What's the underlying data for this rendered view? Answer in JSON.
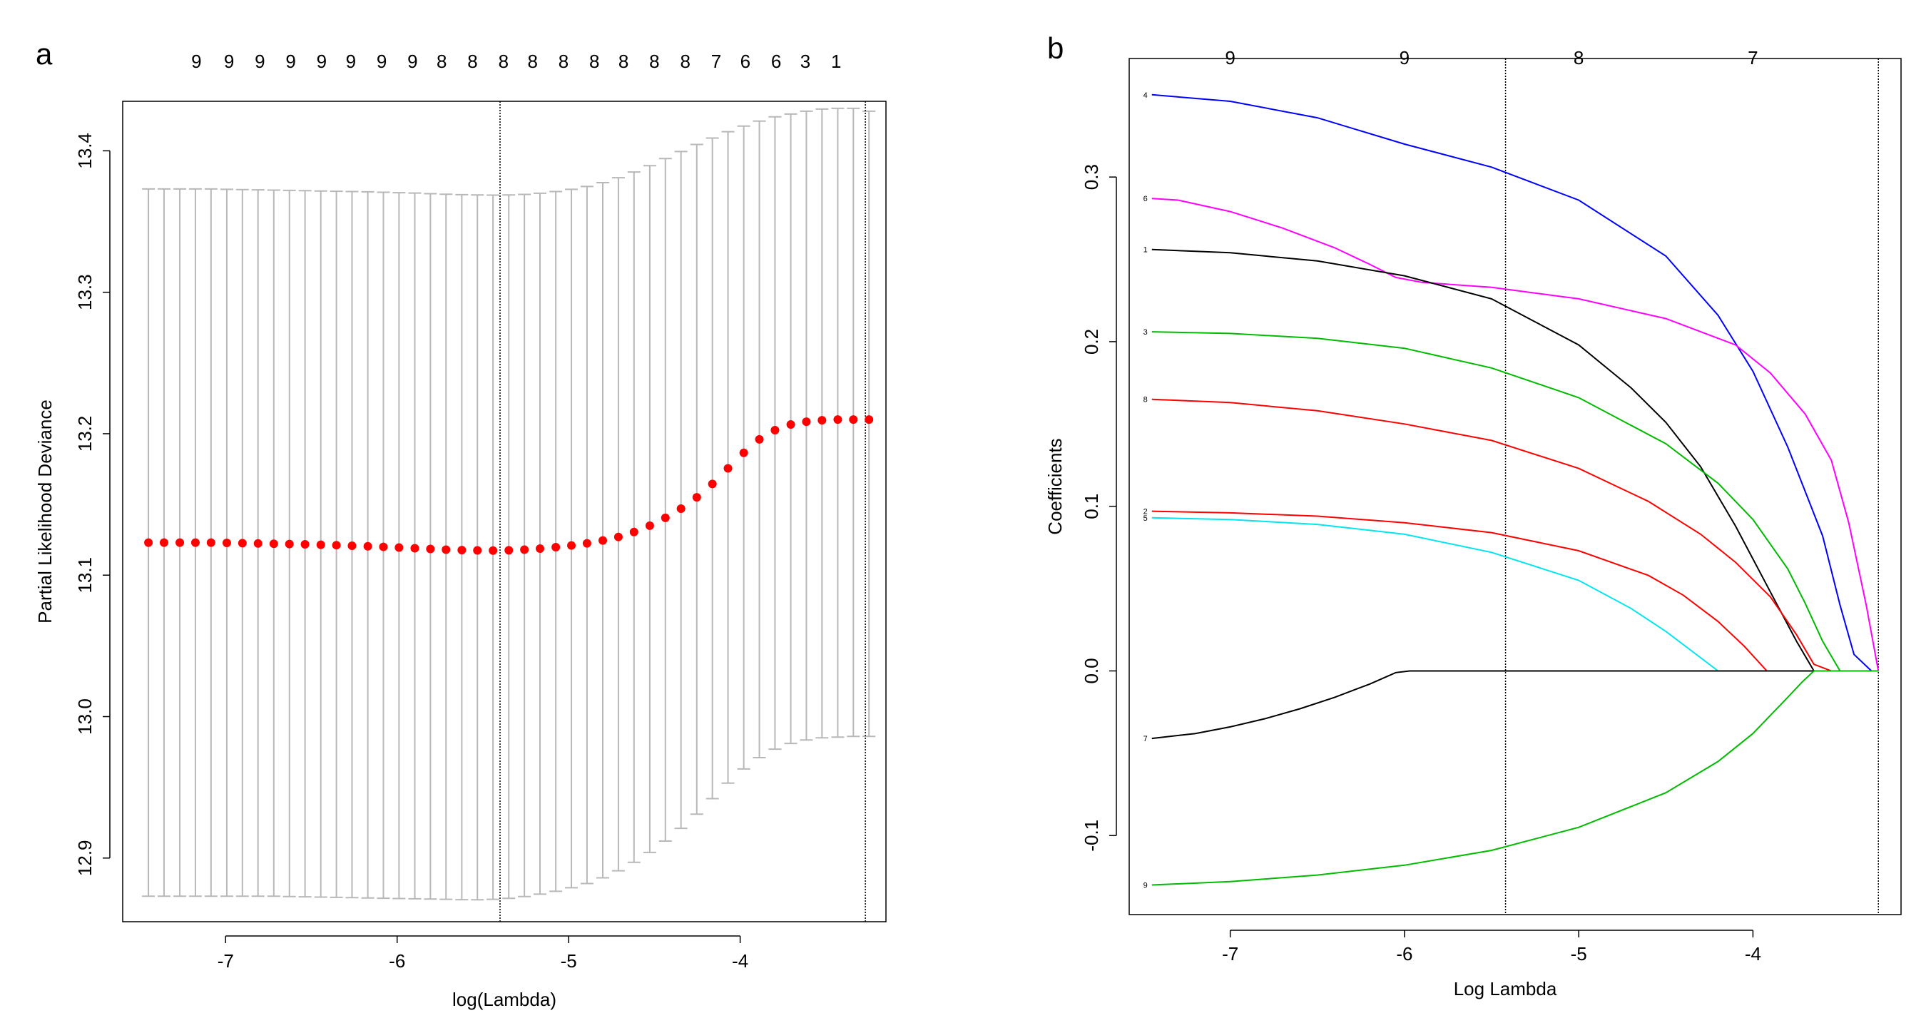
{
  "chart_data": [
    {
      "panel": "a",
      "type": "scatter",
      "title": "",
      "xlabel": "log(Lambda)",
      "ylabel": "Partial Likelihood Deviance",
      "xlim": [
        -7.6,
        -3.15
      ],
      "ylim": [
        12.855,
        13.435
      ],
      "xticks": [
        -7,
        -6,
        -5,
        -4
      ],
      "yticks": [
        12.9,
        13.0,
        13.1,
        13.2,
        13.3,
        13.4
      ],
      "top_counts": [
        "9",
        "9",
        "9",
        "9",
        "9",
        "9",
        "9",
        "9",
        "8",
        "8",
        "8",
        "8",
        "8",
        "8",
        "8",
        "8",
        "8",
        "7",
        "6",
        "6",
        "3",
        "1"
      ],
      "top_counts_x": [
        -7.17,
        -6.98,
        -6.8,
        -6.62,
        -6.44,
        -6.27,
        -6.09,
        -5.91,
        -5.74,
        -5.56,
        -5.38,
        -5.21,
        -5.03,
        -4.85,
        -4.68,
        -4.5,
        -4.32,
        -4.14,
        -3.97,
        -3.79,
        -3.62,
        -3.44
      ],
      "vlines": [
        -5.4,
        -3.27
      ],
      "series": [
        {
          "name": "cv-deviance",
          "color": "#ff0000",
          "x": [
            -7.45,
            -7.359,
            -7.267,
            -7.176,
            -7.085,
            -6.993,
            -6.902,
            -6.811,
            -6.719,
            -6.628,
            -6.537,
            -6.445,
            -6.354,
            -6.263,
            -6.171,
            -6.08,
            -5.989,
            -5.897,
            -5.806,
            -5.715,
            -5.623,
            -5.532,
            -5.441,
            -5.349,
            -5.258,
            -5.167,
            -5.075,
            -4.984,
            -4.893,
            -4.801,
            -4.71,
            -4.619,
            -4.527,
            -4.436,
            -4.345,
            -4.253,
            -4.162,
            -4.071,
            -3.979,
            -3.888,
            -3.797,
            -3.705,
            -3.614,
            -3.523,
            -3.431,
            -3.34,
            -3.249
          ],
          "y": [
            13.123,
            13.123,
            13.123,
            13.123,
            13.123,
            13.1228,
            13.1226,
            13.1224,
            13.1222,
            13.122,
            13.1218,
            13.1215,
            13.1212,
            13.1208,
            13.1204,
            13.12,
            13.1195,
            13.119,
            13.1185,
            13.118,
            13.1177,
            13.1175,
            13.1174,
            13.1176,
            13.118,
            13.1188,
            13.1198,
            13.121,
            13.1225,
            13.1245,
            13.127,
            13.1305,
            13.135,
            13.1405,
            13.147,
            13.155,
            13.1645,
            13.1755,
            13.1865,
            13.196,
            13.2025,
            13.2065,
            13.2085,
            13.2095,
            13.21,
            13.21,
            13.21
          ],
          "lower": [
            12.873,
            12.873,
            12.873,
            12.873,
            12.873,
            12.873,
            12.873,
            12.873,
            12.873,
            12.8728,
            12.8726,
            12.8724,
            12.8722,
            12.872,
            12.8718,
            12.8716,
            12.8714,
            12.8712,
            12.871,
            12.8708,
            12.8706,
            12.8705,
            12.8708,
            12.8715,
            12.8728,
            12.8745,
            12.8765,
            12.879,
            12.882,
            12.886,
            12.891,
            12.897,
            12.904,
            12.912,
            12.921,
            12.931,
            12.942,
            12.953,
            12.963,
            12.971,
            12.977,
            12.981,
            12.9835,
            12.985,
            12.9855,
            12.986,
            12.986
          ],
          "upper": [
            13.373,
            13.373,
            13.373,
            13.373,
            13.373,
            13.3728,
            13.3726,
            13.3724,
            13.3722,
            13.372,
            13.3718,
            13.3716,
            13.3714,
            13.3712,
            13.371,
            13.3707,
            13.3704,
            13.3701,
            13.3697,
            13.3693,
            13.369,
            13.3688,
            13.3687,
            13.3688,
            13.3692,
            13.37,
            13.3712,
            13.3728,
            13.3748,
            13.3775,
            13.381,
            13.385,
            13.3895,
            13.3945,
            13.3995,
            13.4045,
            13.409,
            13.4135,
            13.4175,
            13.421,
            13.424,
            13.426,
            13.428,
            13.4295,
            13.43,
            13.43,
            13.428
          ]
        }
      ]
    },
    {
      "panel": "b",
      "type": "line",
      "title": "",
      "xlabel": "Log Lambda",
      "ylabel": "Coefficients",
      "xlim": [
        -7.58,
        -3.15
      ],
      "ylim": [
        -0.148,
        0.372
      ],
      "xticks": [
        -7,
        -6,
        -5,
        -4
      ],
      "yticks": [
        -0.1,
        0.0,
        0.1,
        0.2,
        0.3
      ],
      "ytick_labels": [
        "-0.1",
        "0.0",
        "0.1",
        "0.2",
        "0.3"
      ],
      "top_counts": [
        "9",
        "9",
        "8",
        "7"
      ],
      "top_counts_x": [
        -7,
        -6,
        -5,
        -4
      ],
      "vlines": [
        -5.42,
        -3.28
      ],
      "series": [
        {
          "name": "4",
          "color": "#0000ff",
          "x": [
            -7.45,
            -7.0,
            -6.5,
            -6.0,
            -5.5,
            -5.0,
            -4.5,
            -4.2,
            -4.0,
            -3.8,
            -3.6,
            -3.5,
            -3.42,
            -3.32,
            -3.28
          ],
          "y": [
            0.35,
            0.346,
            0.336,
            0.32,
            0.306,
            0.286,
            0.252,
            0.216,
            0.182,
            0.136,
            0.082,
            0.04,
            0.01,
            0.0,
            0.0
          ]
        },
        {
          "name": "6",
          "color": "#ff00ff",
          "x": [
            -7.45,
            -7.3,
            -7.0,
            -6.7,
            -6.4,
            -6.2,
            -6.05,
            -5.9,
            -5.5,
            -5.0,
            -4.5,
            -4.1,
            -3.9,
            -3.7,
            -3.55,
            -3.45,
            -3.35,
            -3.28
          ],
          "y": [
            0.287,
            0.286,
            0.279,
            0.269,
            0.257,
            0.247,
            0.239,
            0.236,
            0.233,
            0.226,
            0.214,
            0.198,
            0.181,
            0.156,
            0.128,
            0.09,
            0.04,
            0.0
          ]
        },
        {
          "name": "1",
          "color": "#000000",
          "x": [
            -7.45,
            -7.0,
            -6.5,
            -6.0,
            -5.5,
            -5.0,
            -4.7,
            -4.5,
            -4.3,
            -4.1,
            -3.9,
            -3.75,
            -3.65,
            -3.28
          ],
          "y": [
            0.256,
            0.254,
            0.249,
            0.24,
            0.226,
            0.198,
            0.172,
            0.151,
            0.124,
            0.088,
            0.048,
            0.018,
            0.0,
            0.0
          ]
        },
        {
          "name": "3",
          "color": "#00bb00",
          "x": [
            -7.45,
            -7.0,
            -6.5,
            -6.0,
            -5.5,
            -5.0,
            -4.5,
            -4.2,
            -4.0,
            -3.8,
            -3.7,
            -3.6,
            -3.5,
            -3.28
          ],
          "y": [
            0.206,
            0.205,
            0.202,
            0.196,
            0.184,
            0.166,
            0.138,
            0.114,
            0.092,
            0.062,
            0.041,
            0.018,
            0.0,
            0.0
          ]
        },
        {
          "name": "8",
          "color": "#ff0000",
          "x": [
            -7.45,
            -7.0,
            -6.5,
            -6.0,
            -5.5,
            -5.0,
            -4.6,
            -4.3,
            -4.1,
            -3.9,
            -3.75,
            -3.65,
            -3.55,
            -3.28
          ],
          "y": [
            0.165,
            0.163,
            0.158,
            0.15,
            0.14,
            0.123,
            0.103,
            0.083,
            0.066,
            0.045,
            0.022,
            0.004,
            0.0,
            0.0
          ]
        },
        {
          "name": "2",
          "color": "#ff0000",
          "x": [
            -7.45,
            -7.0,
            -6.5,
            -6.0,
            -5.5,
            -5.0,
            -4.6,
            -4.4,
            -4.2,
            -4.05,
            -3.92,
            -3.28
          ],
          "y": [
            0.097,
            0.096,
            0.094,
            0.09,
            0.084,
            0.073,
            0.058,
            0.046,
            0.03,
            0.015,
            0.0,
            0.0
          ]
        },
        {
          "name": "5",
          "color": "#00e5ee",
          "x": [
            -7.45,
            -7.0,
            -6.5,
            -6.0,
            -5.5,
            -5.0,
            -4.7,
            -4.5,
            -4.3,
            -4.2,
            -3.28
          ],
          "y": [
            0.093,
            0.092,
            0.089,
            0.083,
            0.072,
            0.055,
            0.038,
            0.024,
            0.008,
            0.0,
            0.0
          ]
        },
        {
          "name": "7",
          "color": "#000000",
          "x": [
            -7.45,
            -7.2,
            -7.0,
            -6.8,
            -6.6,
            -6.4,
            -6.2,
            -6.05,
            -5.97,
            -3.28
          ],
          "y": [
            -0.041,
            -0.038,
            -0.034,
            -0.029,
            -0.023,
            -0.016,
            -0.008,
            -0.001,
            0.0,
            0.0
          ]
        },
        {
          "name": "9",
          "color": "#00bb00",
          "x": [
            -7.45,
            -7.0,
            -6.5,
            -6.0,
            -5.5,
            -5.0,
            -4.5,
            -4.2,
            -4.0,
            -3.8,
            -3.72,
            -3.65,
            -3.28
          ],
          "y": [
            -0.13,
            -0.128,
            -0.124,
            -0.118,
            -0.109,
            -0.095,
            -0.074,
            -0.055,
            -0.038,
            -0.016,
            -0.007,
            0.0,
            0.0
          ]
        }
      ]
    }
  ],
  "panel_a": {
    "letter": "a"
  },
  "panel_b": {
    "letter": "b"
  }
}
